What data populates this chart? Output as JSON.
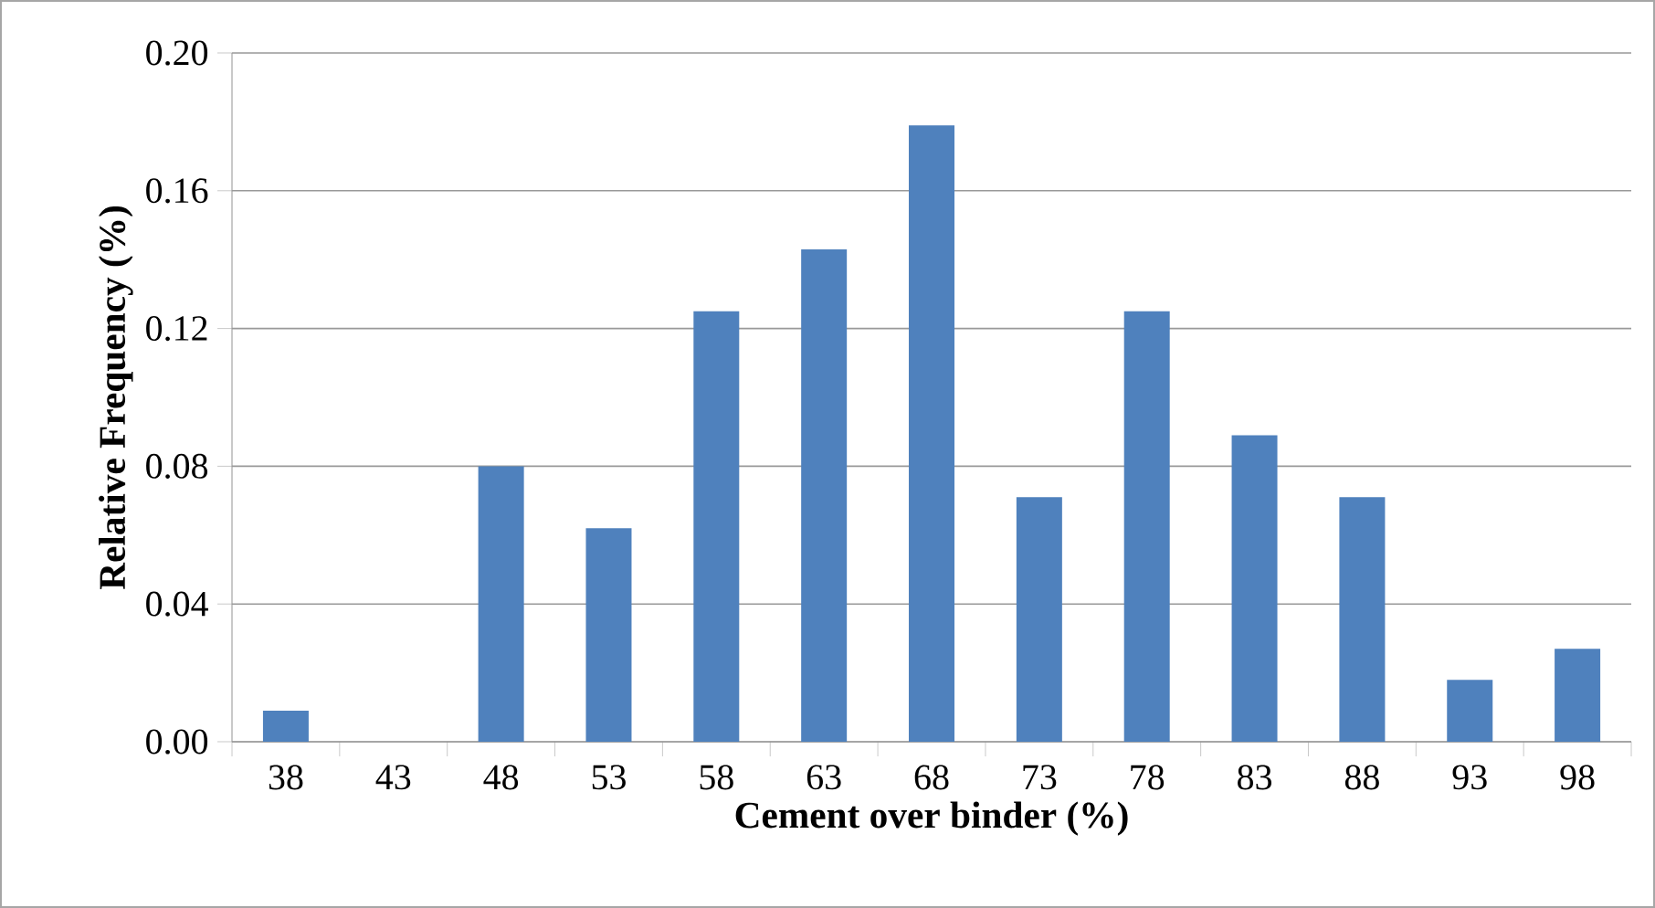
{
  "chart_data": {
    "type": "bar",
    "xlabel": "Cement over binder (%)",
    "ylabel": "Relative Frequency (%)",
    "categories": [
      "38",
      "43",
      "48",
      "53",
      "58",
      "63",
      "68",
      "73",
      "78",
      "83",
      "88",
      "93",
      "98"
    ],
    "values": [
      0.009,
      0,
      0.08,
      0.062,
      0.125,
      0.143,
      0.179,
      0.071,
      0.125,
      0.089,
      0.071,
      0.018,
      0.027
    ],
    "color": "#4f81bd",
    "ylim": [
      0,
      0.2
    ],
    "yticks": [
      {
        "value": 0,
        "label": "0.00"
      },
      {
        "value": 0.04,
        "label": "0.04"
      },
      {
        "value": 0.08,
        "label": "0.08"
      },
      {
        "value": 0.12,
        "label": "0.12"
      },
      {
        "value": 0.16,
        "label": "0.16"
      },
      {
        "value": 0.2,
        "label": "0.20"
      }
    ],
    "grid": "y"
  }
}
